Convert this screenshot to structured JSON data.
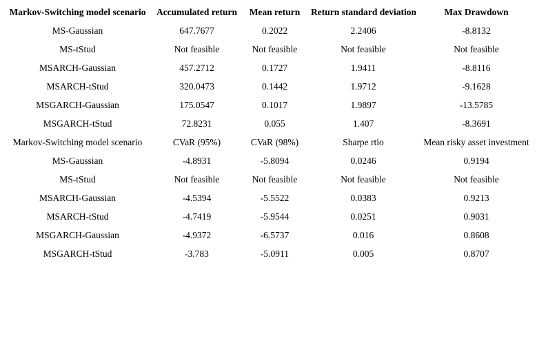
{
  "page": {
    "background": "#ffffff",
    "text_color": "#000000"
  },
  "table1": {
    "headers": [
      "Markov-Switching model scenario",
      "Accumulated return",
      "Mean return",
      "Return standard deviation",
      "Max Drawdown"
    ],
    "rows": [
      [
        "MS-Gaussian",
        "647.7677",
        "0.2022",
        "2.2406",
        "-8.8132"
      ],
      [
        "MS-tStud",
        "Not feasible",
        "Not feasible",
        "Not feasible",
        "Not feasible"
      ],
      [
        "MSARCH-Gaussian",
        "457.2712",
        "0.1727",
        "1.9411",
        "-8.8116"
      ],
      [
        "MSARCH-tStud",
        "320.0473",
        "0.1442",
        "1.9712",
        "-9.1628"
      ],
      [
        "MSGARCH-Gaussian",
        "175.0547",
        "0.1017",
        "1.9897",
        "-13.5785"
      ],
      [
        "MSGARCH-tStud",
        "72.8231",
        "0.055",
        "1.407",
        "-8.3691"
      ]
    ]
  },
  "table2": {
    "headers": [
      "Markov-Switching model scenario",
      "CVaR (95%)",
      "CVaR (98%)",
      "Sharpe rtio",
      "Mean risky asset investment"
    ],
    "rows": [
      [
        "MS-Gaussian",
        "-4.8931",
        "-5.8094",
        "0.0246",
        "0.9194"
      ],
      [
        "MS-tStud",
        "Not feasible",
        "Not feasible",
        "Not feasible",
        "Not feasible"
      ],
      [
        "MSARCH-Gaussian",
        "-4.5394",
        "-5.5522",
        "0.0383",
        "0.9213"
      ],
      [
        "MSARCH-tStud",
        "-4.7419",
        "-5.9544",
        "0.0251",
        "0.9031"
      ],
      [
        "MSGARCH-Gaussian",
        "-4.9372",
        "-6.5737",
        "0.016",
        "0.8608"
      ],
      [
        "MSGARCH-tStud",
        "-3.783",
        "-5.0911",
        "0.005",
        "0.8707"
      ]
    ]
  }
}
